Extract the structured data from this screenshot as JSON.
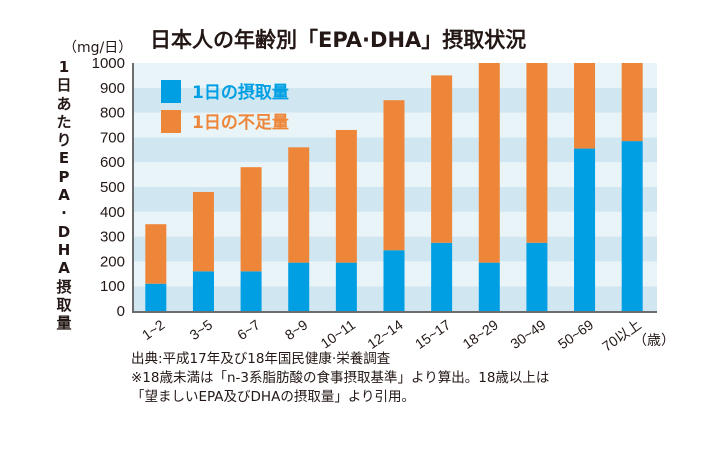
{
  "chart_data": {
    "type": "bar",
    "stacked": true,
    "title": "日本人の年齢別「EPA·DHA」摂取状況",
    "ylabel": "1日あたりEPA·DHA摂取量",
    "yunit": "（mg/日）",
    "xunit": "（歳）",
    "ylim": [
      0,
      1000
    ],
    "yticks": [
      0,
      100,
      200,
      300,
      400,
      500,
      600,
      700,
      800,
      900,
      1000
    ],
    "categories": [
      "1~2",
      "3~5",
      "6~7",
      "8~9",
      "10~11",
      "12~14",
      "15~17",
      "18~29",
      "30~49",
      "50~69",
      "70以上"
    ],
    "series": [
      {
        "name": "1日の摂取量",
        "color": "#009fe3",
        "values": [
          110,
          160,
          160,
          195,
          195,
          245,
          275,
          195,
          275,
          655,
          685
        ]
      },
      {
        "name": "1日の不足量",
        "color": "#ee863a",
        "values": [
          240,
          320,
          420,
          465,
          535,
          605,
          675,
          805,
          725,
          345,
          315
        ]
      }
    ],
    "legend_position": "top-left",
    "background_bands": [
      "#e8f4f8",
      "#d0e7f1"
    ],
    "grid": false
  },
  "notes": [
    "出典:平成17年及び18年国民健康·栄養調査",
    "※18歳未満は「n-3系脂肪酸の食事摂取基準」より算出。18歳以上は",
    "「望ましいEPA及びDHAの摂取量」より引用。"
  ]
}
